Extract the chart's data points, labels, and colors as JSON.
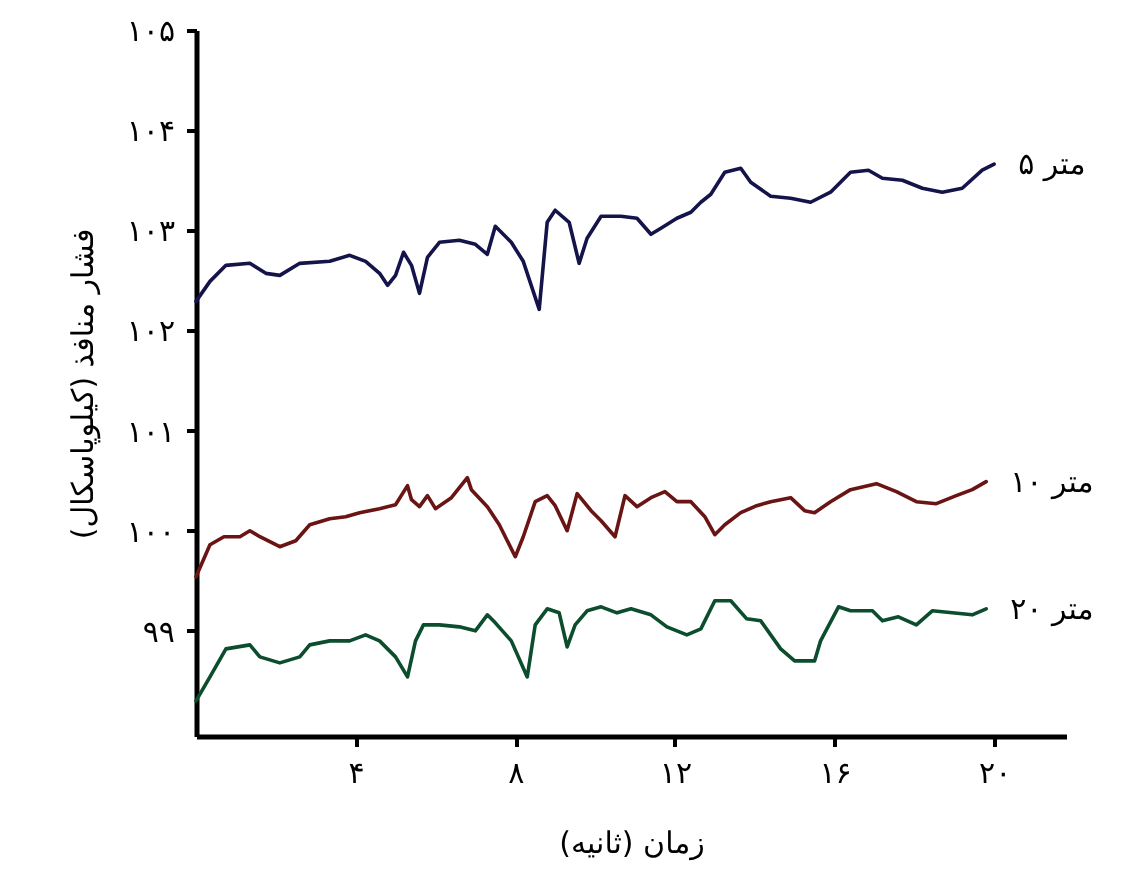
{
  "chart_data": {
    "type": "line",
    "xlabel": "زمان (ثانیه)",
    "ylabel": "فشار منافذ (کیلوپاسکال)",
    "xlim": [
      0,
      21.8
    ],
    "ylim": [
      97.95,
      105
    ],
    "xticks": [
      {
        "value": 4,
        "label": "۴"
      },
      {
        "value": 8,
        "label": "۸"
      },
      {
        "value": 12,
        "label": "۱۲"
      },
      {
        "value": 16,
        "label": "۱۶"
      },
      {
        "value": 20,
        "label": "۲۰"
      }
    ],
    "yticks": [
      {
        "value": 99,
        "label": "۹۹"
      },
      {
        "value": 100,
        "label": "۱۰۰"
      },
      {
        "value": 101,
        "label": "۱۰۱"
      },
      {
        "value": 102,
        "label": "۱۰۲"
      },
      {
        "value": 103,
        "label": "۱۰۳"
      },
      {
        "value": 104,
        "label": "۱۰۴"
      },
      {
        "value": 105,
        "label": "۱۰۵"
      }
    ],
    "grid": false,
    "line_style": "solid",
    "marker": "none",
    "series": [
      {
        "name": "۵ متر",
        "color": "#14144a",
        "x": [
          0,
          0.35,
          0.75,
          1.35,
          1.75,
          2.1,
          2.6,
          3.35,
          3.85,
          4.25,
          4.6,
          4.8,
          5.0,
          5.2,
          5.4,
          5.6,
          5.8,
          6.1,
          6.6,
          7.0,
          7.3,
          7.5,
          7.9,
          8.2,
          8.6,
          8.8,
          9.0,
          9.35,
          9.6,
          9.8,
          10.15,
          10.65,
          11.05,
          11.4,
          11.65,
          12.05,
          12.4,
          12.65,
          12.9,
          13.25,
          13.65,
          13.9,
          14.4,
          14.9,
          15.4,
          15.9,
          16.4,
          16.85,
          17.2,
          17.7,
          18.2,
          18.7,
          19.2,
          19.7,
          20.0
        ],
        "values": [
          102.29,
          102.49,
          102.65,
          102.67,
          102.57,
          102.55,
          102.67,
          102.69,
          102.75,
          102.69,
          102.57,
          102.45,
          102.55,
          102.78,
          102.65,
          102.37,
          102.73,
          102.88,
          102.9,
          102.86,
          102.76,
          103.04,
          102.88,
          102.69,
          102.21,
          103.08,
          103.2,
          103.08,
          102.67,
          102.92,
          103.14,
          103.14,
          103.12,
          102.96,
          103.02,
          103.12,
          103.18,
          103.28,
          103.36,
          103.58,
          103.62,
          103.48,
          103.34,
          103.32,
          103.28,
          103.38,
          103.58,
          103.6,
          103.52,
          103.5,
          103.42,
          103.38,
          103.42,
          103.6,
          103.66
        ]
      },
      {
        "name": "۱۰ متر",
        "color": "#6a1414",
        "x": [
          0,
          0.35,
          0.7,
          1.1,
          1.35,
          1.6,
          2.1,
          2.5,
          2.85,
          3.35,
          3.75,
          4.1,
          4.6,
          5.0,
          5.3,
          5.4,
          5.6,
          5.8,
          6.0,
          6.4,
          6.8,
          6.9,
          7.3,
          7.6,
          8.0,
          8.2,
          8.5,
          8.8,
          9.0,
          9.3,
          9.55,
          9.9,
          10.15,
          10.5,
          10.75,
          11.05,
          11.4,
          11.75,
          12.05,
          12.4,
          12.75,
          13.0,
          13.25,
          13.65,
          14.05,
          14.4,
          14.9,
          15.25,
          15.5,
          15.9,
          16.4,
          17.05,
          17.55,
          18.05,
          18.55,
          19.05,
          19.45,
          19.8
        ],
        "values": [
          99.54,
          99.86,
          99.94,
          99.94,
          100.0,
          99.94,
          99.84,
          99.9,
          100.06,
          100.12,
          100.14,
          100.18,
          100.22,
          100.26,
          100.45,
          100.31,
          100.24,
          100.35,
          100.22,
          100.33,
          100.53,
          100.41,
          100.24,
          100.06,
          99.74,
          99.94,
          100.29,
          100.35,
          100.25,
          100.0,
          100.37,
          100.2,
          100.1,
          99.94,
          100.35,
          100.24,
          100.33,
          100.39,
          100.29,
          100.29,
          100.14,
          99.96,
          100.06,
          100.18,
          100.25,
          100.29,
          100.33,
          100.2,
          100.18,
          100.29,
          100.41,
          100.47,
          100.39,
          100.29,
          100.27,
          100.35,
          100.41,
          100.49
        ]
      },
      {
        "name": "۲۰ متر",
        "color": "#0b4d2c",
        "x": [
          0,
          0.35,
          0.75,
          1.35,
          1.6,
          2.1,
          2.6,
          2.85,
          3.35,
          3.85,
          4.25,
          4.6,
          5.0,
          5.3,
          5.5,
          5.7,
          6.1,
          6.6,
          7.0,
          7.3,
          7.5,
          7.9,
          8.3,
          8.5,
          8.8,
          9.1,
          9.3,
          9.5,
          9.8,
          10.15,
          10.55,
          10.9,
          11.4,
          11.8,
          12.3,
          12.65,
          13.0,
          13.4,
          13.8,
          14.15,
          14.65,
          15.0,
          15.5,
          15.65,
          16.1,
          16.4,
          16.95,
          17.2,
          17.6,
          18.05,
          18.45,
          18.95,
          19.45,
          19.8
        ],
        "values": [
          98.3,
          98.54,
          98.82,
          98.86,
          98.74,
          98.68,
          98.74,
          98.86,
          98.9,
          98.9,
          98.96,
          98.9,
          98.74,
          98.54,
          98.9,
          99.06,
          99.06,
          99.04,
          99.0,
          99.16,
          99.08,
          98.9,
          98.54,
          99.06,
          99.22,
          99.18,
          98.84,
          99.06,
          99.2,
          99.24,
          99.18,
          99.22,
          99.16,
          99.04,
          98.96,
          99.02,
          99.3,
          99.3,
          99.12,
          99.1,
          98.82,
          98.7,
          98.7,
          98.9,
          99.24,
          99.2,
          99.2,
          99.1,
          99.14,
          99.06,
          99.2,
          99.18,
          99.16,
          99.22
        ]
      }
    ]
  }
}
